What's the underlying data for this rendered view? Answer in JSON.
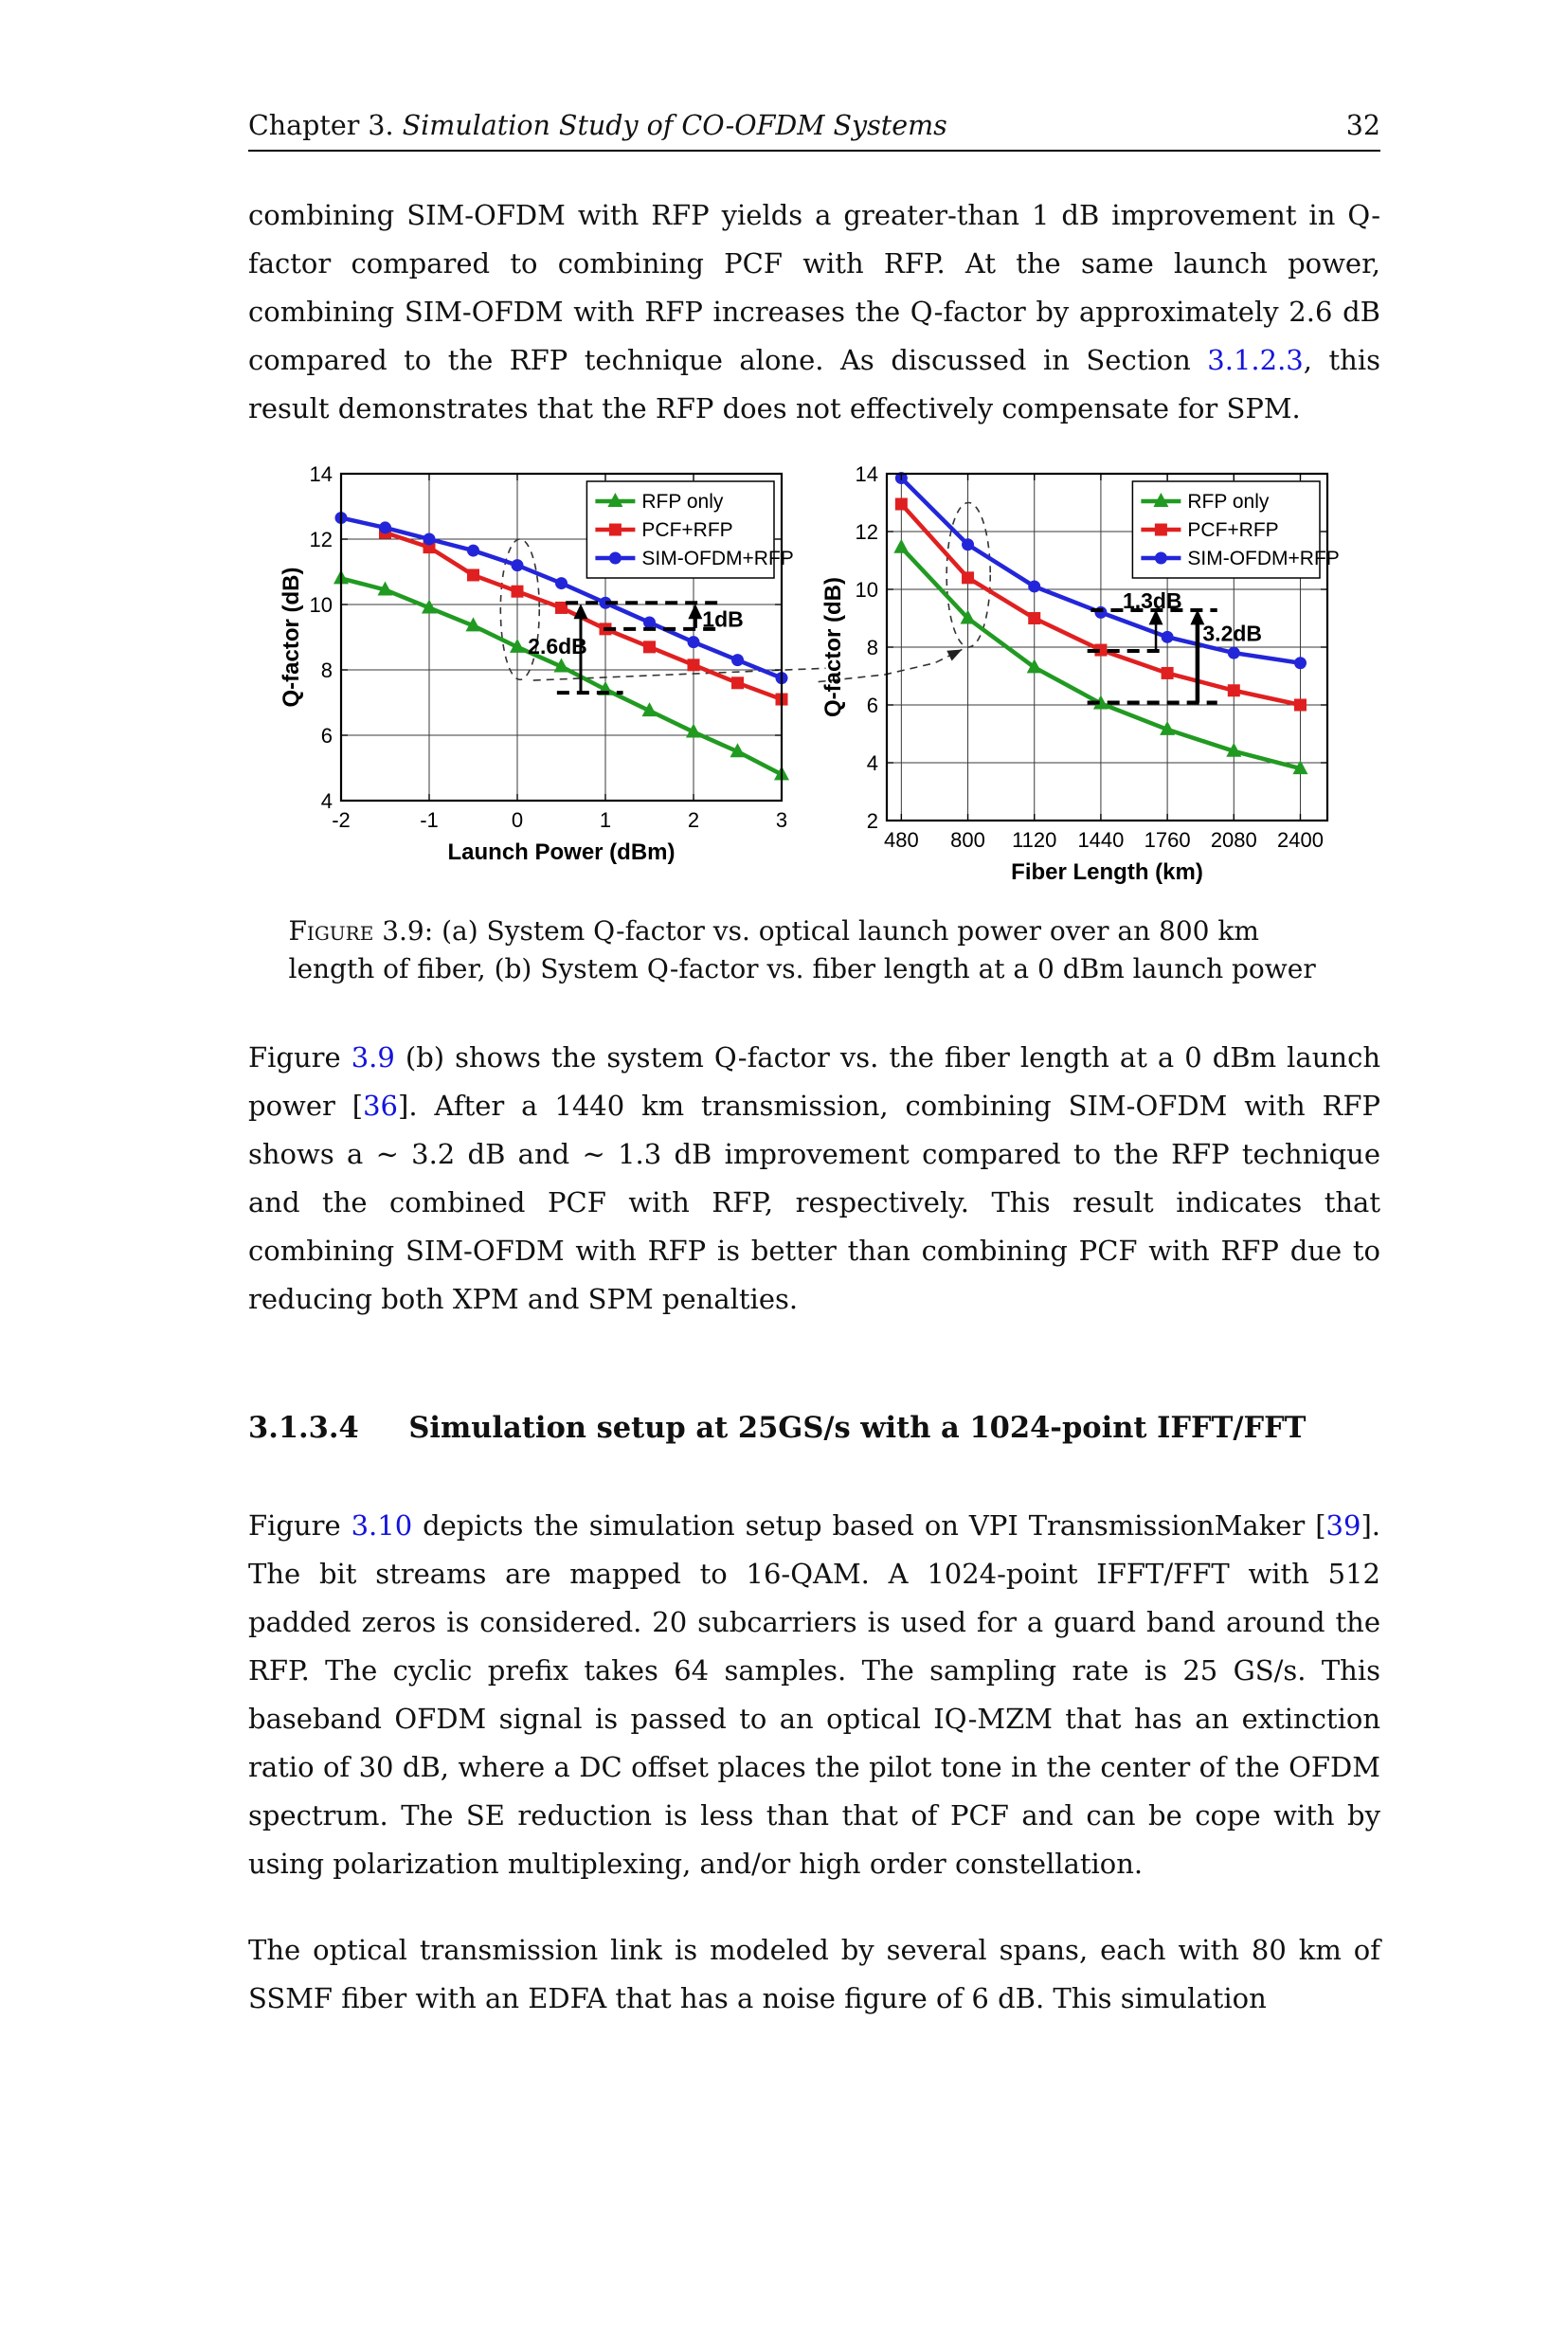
{
  "header": {
    "chapter_label": "Chapter 3.",
    "chapter_title": "Simulation Study of CO-OFDM Systems",
    "page_number": "32"
  },
  "paragraphs": {
    "p1": {
      "segments": [
        {
          "text": "combining SIM-OFDM with RFP yields a greater-than 1 dB improvement in Q-factor compared to combining PCF with RFP. At the same launch power, combining SIM-OFDM with RFP increases the Q-factor by approximately 2.6 dB compared to the RFP technique alone. As discussed in Section "
        },
        {
          "text": "3.1.2.3",
          "style": "link"
        },
        {
          "text": ", this result demonstrates that the RFP does not effectively compensate for SPM."
        }
      ]
    },
    "p2": {
      "segments": [
        {
          "text": "Figure "
        },
        {
          "text": "3.9",
          "style": "link"
        },
        {
          "text": " (b) shows the system Q-factor vs. the fiber length at a 0 dBm launch power ["
        },
        {
          "text": "36",
          "style": "link"
        },
        {
          "text": "]. After a 1440 km transmission, combining SIM-OFDM with RFP shows a ∼ 3.2 dB and ∼ 1.3 dB improvement compared to the RFP technique and the combined PCF with RFP, respectively. This result indicates that combining SIM-OFDM with RFP is better than combining PCF with RFP due to reducing both XPM and SPM penalties."
        }
      ]
    },
    "p3": {
      "segments": [
        {
          "text": "Figure "
        },
        {
          "text": "3.10",
          "style": "link"
        },
        {
          "text": " depicts the simulation setup based on VPI TransmissionMaker ["
        },
        {
          "text": "39",
          "style": "link"
        },
        {
          "text": "]. The bit streams are mapped to 16-QAM. A 1024-point IFFT/FFT with 512 padded zeros is considered. 20 subcarriers is used for a guard band around the RFP. The cyclic prefix takes 64 samples. The sampling rate is 25 GS/s. This baseband OFDM signal is passed to an optical IQ-MZM that has an extinction ratio of 30 dB, where a DC offset places the pilot tone in the center of the OFDM spectrum. The SE reduction is less than that of PCF and can be cope with by using polarization multiplexing, and/or high order constellation."
        }
      ]
    },
    "p4": {
      "segments": [
        {
          "text": "The optical transmission link is modeled by several spans, each with 80 km of SSMF fiber with an EDFA that has a noise figure of 6 dB. This simulation"
        }
      ]
    }
  },
  "figure": {
    "caption": {
      "segments": [
        {
          "text": "Figure 3.9: ",
          "style": "smallcaps"
        },
        {
          "text": "(a) System Q-factor vs. optical launch power over an 800 km length of fiber, (b) System Q-factor vs. fiber length at a 0 dBm launch power"
        }
      ]
    }
  },
  "section_heading": {
    "number": "3.1.3.4",
    "title": "Simulation setup at 25GS/s with a 1024-point IFFT/FFT"
  },
  "chart_data": [
    {
      "type": "line",
      "title": "",
      "xlabel": "Launch Power (dBm)",
      "ylabel": "Q-factor (dB)",
      "xlim": [
        -2,
        3
      ],
      "ylim": [
        4,
        14
      ],
      "xticks": [
        -2,
        -1,
        0,
        1,
        2,
        3
      ],
      "yticks": [
        4,
        6,
        8,
        10,
        12,
        14
      ],
      "grid": true,
      "legend": true,
      "legend_position": "top-right",
      "x": [
        -2,
        -1.5,
        -1,
        -0.5,
        0,
        0.5,
        1,
        1.5,
        2,
        2.5,
        3
      ],
      "series": [
        {
          "name": "RFP only",
          "color": "#219a21",
          "marker": "triangle",
          "values": [
            10.8,
            10.45,
            9.9,
            9.35,
            8.7,
            8.1,
            7.4,
            6.75,
            6.1,
            5.5,
            4.8
          ]
        },
        {
          "name": "PCF+RFP",
          "color": "#e02020",
          "marker": "square",
          "values": [
            null,
            12.2,
            11.75,
            10.9,
            10.4,
            9.9,
            9.25,
            8.7,
            8.15,
            7.6,
            7.1
          ]
        },
        {
          "name": "SIM-OFDM+RFP",
          "color": "#2326d8",
          "marker": "circle",
          "values": [
            12.65,
            12.35,
            12.0,
            11.65,
            11.2,
            10.65,
            10.05,
            9.45,
            8.85,
            8.3,
            7.75
          ]
        }
      ],
      "annotations": {
        "ellipse": {
          "cx": 0.03,
          "cy": 9.85,
          "rx": 0.22,
          "ry": 2.15
        },
        "dashed_lines": [
          {
            "y": 10.05,
            "x1": 0.55,
            "x2": 2.32
          },
          {
            "y": 9.25,
            "x1": 0.98,
            "x2": 2.25
          },
          {
            "y": 7.3,
            "x1": 0.45,
            "x2": 1.2
          }
        ],
        "arrows": [
          {
            "x": 0.72,
            "y1": 7.3,
            "y2": 10.02,
            "w": 3
          },
          {
            "x": 2.02,
            "y1": 9.28,
            "y2": 10.02,
            "w": 4
          }
        ],
        "labels": [
          {
            "text": "2.6dB",
            "x": 0.12,
            "y": 8.72
          },
          {
            "text": "1dB",
            "x": 2.1,
            "y": 9.55
          }
        ],
        "connector": {
          "points": [
            [
              0.18,
              7.68
            ],
            [
              3.5,
              8.05
            ]
          ],
          "arrow": false
        }
      }
    },
    {
      "type": "line",
      "title": "",
      "xlabel": "Fiber Length (km)",
      "ylabel": "Q-factor (dB)",
      "xlim": [
        410,
        2530
      ],
      "ylim": [
        2,
        14
      ],
      "xticks": [
        480,
        800,
        1120,
        1440,
        1760,
        2080,
        2400
      ],
      "yticks": [
        2,
        4,
        6,
        8,
        10,
        12,
        14
      ],
      "grid": true,
      "legend": true,
      "legend_position": "top-right",
      "x": [
        480,
        800,
        1120,
        1440,
        1760,
        2080,
        2400
      ],
      "series": [
        {
          "name": "RFP only",
          "color": "#219a21",
          "marker": "triangle",
          "values": [
            11.45,
            9.0,
            7.3,
            6.05,
            5.15,
            4.4,
            3.8
          ]
        },
        {
          "name": "PCF+RFP",
          "color": "#e02020",
          "marker": "square",
          "values": [
            12.95,
            10.4,
            9.0,
            7.9,
            7.1,
            6.5,
            6.0
          ]
        },
        {
          "name": "SIM-OFDM+RFP",
          "color": "#2326d8",
          "marker": "circle",
          "values": [
            13.85,
            11.55,
            10.1,
            9.2,
            8.35,
            7.8,
            7.45
          ]
        }
      ],
      "annotations": {
        "ellipse": {
          "cx": 803,
          "cy": 10.5,
          "rx": 105,
          "ry": 2.5
        },
        "dashed_lines": [
          {
            "y": 9.28,
            "x1": 1392,
            "x2": 2000
          },
          {
            "y": 7.87,
            "x1": 1375,
            "x2": 1744
          },
          {
            "y": 6.08,
            "x1": 1375,
            "x2": 2000
          }
        ],
        "arrows": [
          {
            "x": 1705,
            "y1": 7.87,
            "y2": 9.3,
            "w": 2.5
          },
          {
            "x": 1905,
            "y1": 6.08,
            "y2": 9.3,
            "w": 4.5
          }
        ],
        "labels": [
          {
            "text": "1.3dB",
            "x": 1545,
            "y": 9.6
          },
          {
            "text": "3.2dB",
            "x": 1930,
            "y": 8.48
          }
        ],
        "connector": {
          "points": [
            [
              80,
              6.8
            ],
            [
              400,
              7.05
            ],
            [
              640,
              7.45
            ],
            [
              772,
              7.92
            ]
          ],
          "arrow": true
        }
      }
    }
  ]
}
